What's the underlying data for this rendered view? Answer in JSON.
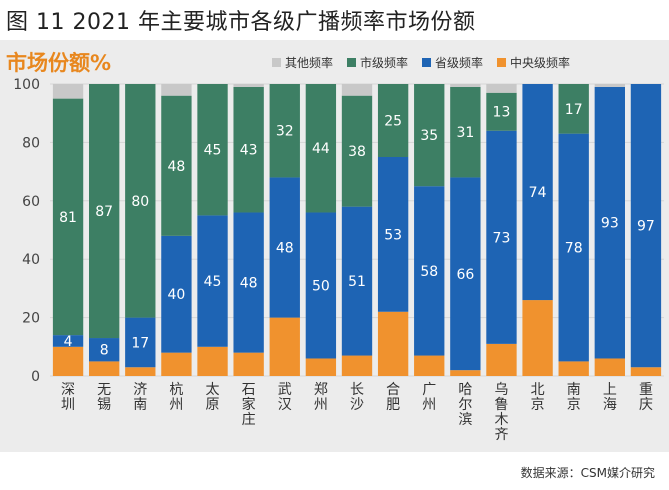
{
  "figure_title": "图 11 2021 年主要城市各级广播频率市场份额",
  "source": "数据来源：CSM媒介研究",
  "colors": {
    "other": "#c8c8c8",
    "municipal": "#3d7f64",
    "provincial": "#1e64b4",
    "central": "#f0922e",
    "panel_bg": "#ececec",
    "grid": "#d6d6d6",
    "title_accent": "#e8871e"
  },
  "chart_data": {
    "type": "bar",
    "stacked": true,
    "title": "市场份额%",
    "xlabel": "",
    "ylabel": "",
    "ylim": [
      0,
      100
    ],
    "yticks": [
      0,
      20,
      40,
      60,
      80,
      100
    ],
    "grid": true,
    "legend_position": "top-right",
    "categories": [
      "深圳",
      "无锡",
      "济南",
      "杭州",
      "太原",
      "石家庄",
      "武汉",
      "郑州",
      "长沙",
      "合肥",
      "广州",
      "哈尔滨",
      "乌鲁木齐",
      "北京",
      "南京",
      "上海",
      "重庆"
    ],
    "series": [
      {
        "key": "central",
        "name": "中央级频率",
        "values": [
          10,
          5,
          3,
          8,
          10,
          8,
          20,
          6,
          7,
          22,
          7,
          2,
          11,
          26,
          5,
          6,
          3
        ],
        "labels": [
          null,
          null,
          null,
          null,
          null,
          null,
          null,
          null,
          null,
          null,
          null,
          null,
          null,
          null,
          null,
          null,
          null
        ]
      },
      {
        "key": "provincial",
        "name": "省级频率",
        "values": [
          4,
          8,
          17,
          40,
          45,
          48,
          48,
          50,
          51,
          53,
          58,
          66,
          73,
          74,
          78,
          93,
          97
        ],
        "labels": [
          "4",
          "8",
          "17",
          "40",
          "45",
          "48",
          "48",
          "50",
          "51",
          "53",
          "58",
          "66",
          "73",
          "74",
          "78",
          "93",
          "97"
        ]
      },
      {
        "key": "municipal",
        "name": "市级频率",
        "values": [
          81,
          87,
          80,
          48,
          45,
          43,
          32,
          44,
          38,
          25,
          35,
          31,
          13,
          0,
          17,
          0,
          0
        ],
        "labels": [
          "81",
          "87",
          "80",
          "48",
          "45",
          "43",
          "32",
          "44",
          "38",
          "25",
          "35",
          "31",
          "13",
          null,
          "17",
          null,
          null
        ]
      },
      {
        "key": "other",
        "name": "其他频率",
        "values": [
          5,
          0,
          0,
          4,
          0,
          1,
          0,
          0,
          4,
          0,
          0,
          1,
          3,
          0,
          0,
          1,
          0
        ],
        "labels": [
          null,
          null,
          null,
          null,
          null,
          null,
          null,
          null,
          null,
          null,
          null,
          null,
          null,
          null,
          null,
          null,
          null
        ]
      }
    ],
    "legend_order": [
      "other",
      "municipal",
      "provincial",
      "central"
    ]
  }
}
